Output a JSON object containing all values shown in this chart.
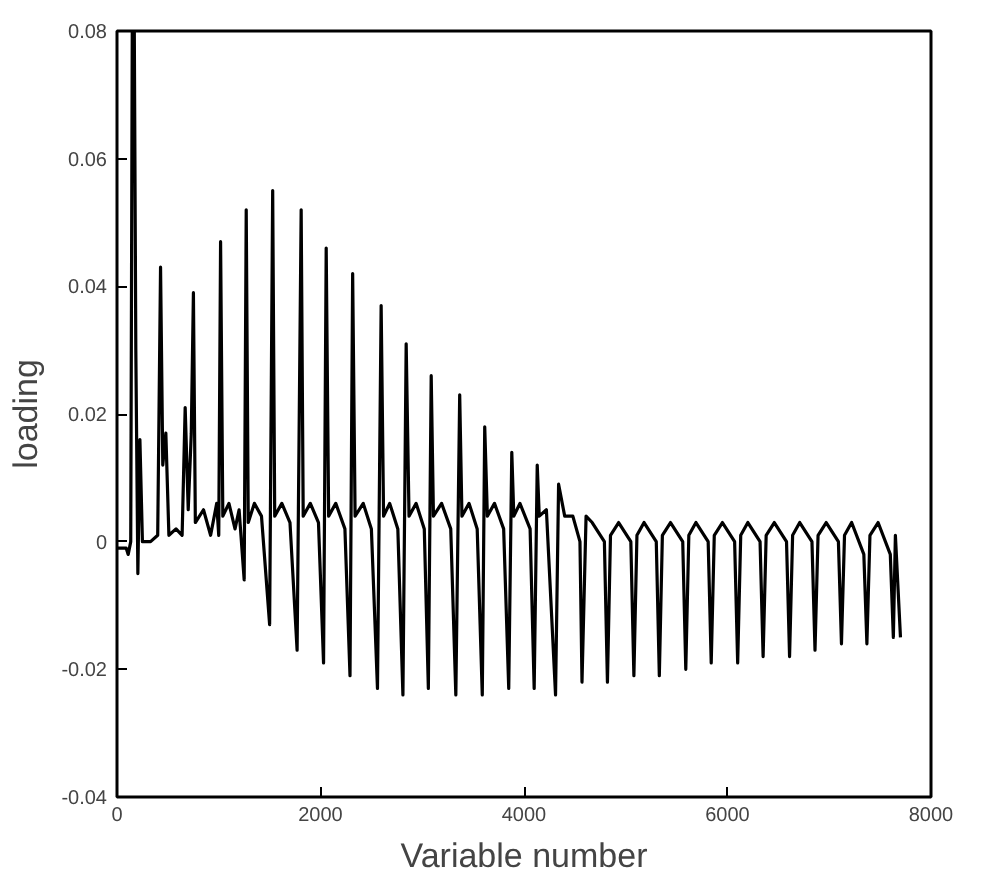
{
  "chart_data": {
    "type": "line",
    "xlabel": "Variable number",
    "ylabel": "loading",
    "xlim": [
      0,
      8000
    ],
    "xticks": [
      0,
      2000,
      4000,
      6000,
      8000
    ],
    "ylim": [
      -0.04,
      0.08
    ],
    "yticks": [
      -0.04,
      -0.02,
      0,
      0.02,
      0.04,
      0.06,
      0.08
    ],
    "line_style": "solid",
    "x": [
      0,
      90,
      110,
      135,
      150,
      170,
      185,
      205,
      225,
      250,
      330,
      400,
      428,
      450,
      480,
      510,
      580,
      640,
      670,
      700,
      730,
      751,
      770,
      850,
      920,
      980,
      1000,
      1018,
      1040,
      1100,
      1160,
      1200,
      1250,
      1270,
      1290,
      1350,
      1420,
      1500,
      1530,
      1550,
      1620,
      1700,
      1770,
      1810,
      1830,
      1900,
      1980,
      2030,
      2056,
      2080,
      2150,
      2240,
      2290,
      2316,
      2340,
      2420,
      2500,
      2560,
      2596,
      2620,
      2680,
      2760,
      2810,
      2842,
      2870,
      2940,
      3020,
      3060,
      3088,
      3110,
      3190,
      3280,
      3330,
      3368,
      3390,
      3460,
      3540,
      3590,
      3614,
      3640,
      3710,
      3800,
      3850,
      3880,
      3900,
      3960,
      4060,
      4100,
      4130,
      4150,
      4220,
      4310,
      4340,
      4400,
      4480,
      4550,
      4570,
      4610,
      4670,
      4790,
      4820,
      4850,
      4930,
      5050,
      5080,
      5110,
      5180,
      5300,
      5330,
      5360,
      5440,
      5560,
      5590,
      5620,
      5690,
      5810,
      5840,
      5870,
      5950,
      6070,
      6100,
      6130,
      6200,
      6320,
      6350,
      6380,
      6460,
      6580,
      6610,
      6640,
      6710,
      6830,
      6860,
      6890,
      6970,
      7090,
      7120,
      7150,
      7220,
      7340,
      7370,
      7400,
      7480,
      7600,
      7630,
      7650,
      7700
    ],
    "series": [
      {
        "color": "#000000",
        "values": [
          -0.001,
          -0.001,
          -0.002,
          0.0,
          0.08,
          0.08,
          0.03,
          -0.005,
          0.016,
          0.0,
          0.0,
          0.001,
          0.043,
          0.012,
          0.017,
          0.001,
          0.002,
          0.001,
          0.021,
          0.005,
          0.017,
          0.039,
          0.003,
          0.005,
          0.001,
          0.006,
          0.001,
          0.047,
          0.004,
          0.006,
          0.002,
          0.005,
          -0.006,
          0.052,
          0.003,
          0.006,
          0.004,
          -0.013,
          0.055,
          0.004,
          0.006,
          0.003,
          -0.017,
          0.052,
          0.004,
          0.006,
          0.003,
          -0.019,
          0.046,
          0.004,
          0.006,
          0.002,
          -0.021,
          0.042,
          0.004,
          0.006,
          0.002,
          -0.023,
          0.037,
          0.004,
          0.006,
          0.002,
          -0.024,
          0.031,
          0.004,
          0.006,
          0.002,
          -0.023,
          0.026,
          0.004,
          0.006,
          0.002,
          -0.024,
          0.023,
          0.004,
          0.006,
          0.002,
          -0.024,
          0.018,
          0.004,
          0.006,
          0.002,
          -0.023,
          0.014,
          0.004,
          0.006,
          0.002,
          -0.023,
          0.012,
          0.004,
          0.005,
          -0.024,
          0.009,
          0.004,
          0.004,
          0.0,
          -0.022,
          0.004,
          0.003,
          0.0,
          -0.022,
          0.001,
          0.003,
          0.0,
          -0.021,
          0.001,
          0.003,
          0.0,
          -0.021,
          0.001,
          0.003,
          0.0,
          -0.02,
          0.001,
          0.003,
          0.0,
          -0.019,
          0.001,
          0.003,
          0.0,
          -0.019,
          0.001,
          0.003,
          0.0,
          -0.018,
          0.001,
          0.003,
          0.0,
          -0.018,
          0.001,
          0.003,
          0.0,
          -0.017,
          0.001,
          0.003,
          0.0,
          -0.016,
          0.001,
          0.003,
          -0.002,
          -0.016,
          0.001,
          0.003,
          -0.002,
          -0.015,
          0.001,
          -0.015
        ]
      }
    ]
  }
}
